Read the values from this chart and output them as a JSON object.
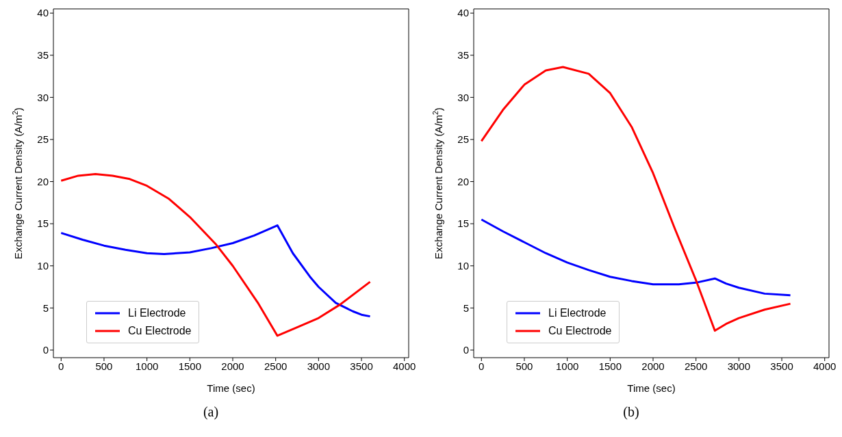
{
  "chart_data": [
    {
      "type": "line",
      "xlabel": "Time (sec)",
      "ylabel": "Exchange Current Density (A/m$^{2}$)",
      "xlim": [
        -90,
        4050
      ],
      "ylim": [
        -0.9,
        40.5
      ],
      "xticks": [
        0,
        500,
        1000,
        1500,
        2000,
        2500,
        3000,
        3500,
        4000
      ],
      "yticks": [
        0,
        5,
        10,
        15,
        20,
        25,
        30,
        35,
        40
      ],
      "legend": "bottom left",
      "grid": false,
      "annotations": [
        "(a)"
      ],
      "series": [
        {
          "name": "Li Electrode",
          "color": "#0000ff",
          "x": [
            0,
            250,
            500,
            750,
            1000,
            1200,
            1500,
            1750,
            2000,
            2250,
            2520,
            2700,
            2900,
            3000,
            3200,
            3400,
            3500,
            3600
          ],
          "values": [
            13.9,
            13.1,
            12.4,
            11.9,
            11.5,
            11.4,
            11.6,
            12.1,
            12.7,
            13.6,
            14.8,
            11.5,
            8.7,
            7.5,
            5.6,
            4.6,
            4.2,
            4.0
          ]
        },
        {
          "name": "Cu Electrode",
          "color": "#ff0000",
          "x": [
            0,
            200,
            400,
            600,
            800,
            1000,
            1250,
            1500,
            1800,
            2000,
            2300,
            2520,
            2750,
            3000,
            3250,
            3600
          ],
          "values": [
            20.1,
            20.7,
            20.9,
            20.7,
            20.3,
            19.5,
            18.0,
            15.8,
            12.6,
            10.0,
            5.5,
            1.7,
            2.7,
            3.8,
            5.4,
            8.1
          ]
        }
      ]
    },
    {
      "type": "line",
      "xlabel": "Time (sec)",
      "ylabel": "Exchange Current Density (A/m$^{2}$)",
      "xlim": [
        -90,
        4050
      ],
      "ylim": [
        -0.9,
        40.5
      ],
      "xticks": [
        0,
        500,
        1000,
        1500,
        2000,
        2500,
        3000,
        3500,
        4000
      ],
      "yticks": [
        0,
        5,
        10,
        15,
        20,
        25,
        30,
        35,
        40
      ],
      "legend": "bottom left",
      "grid": false,
      "annotations": [
        "(b)"
      ],
      "series": [
        {
          "name": "Li Electrode",
          "color": "#0000ff",
          "x": [
            0,
            250,
            500,
            750,
            1000,
            1250,
            1500,
            1750,
            2000,
            2100,
            2300,
            2500,
            2720,
            2850,
            3000,
            3300,
            3600
          ],
          "values": [
            15.5,
            14.1,
            12.8,
            11.5,
            10.4,
            9.5,
            8.7,
            8.2,
            7.8,
            7.8,
            7.8,
            8.0,
            8.5,
            7.9,
            7.4,
            6.7,
            6.5
          ]
        },
        {
          "name": "Cu Electrode",
          "color": "#ff0000",
          "x": [
            0,
            250,
            500,
            750,
            950,
            1250,
            1500,
            1750,
            2000,
            2250,
            2500,
            2720,
            2850,
            3000,
            3300,
            3600
          ],
          "values": [
            24.8,
            28.5,
            31.5,
            33.2,
            33.6,
            32.8,
            30.5,
            26.5,
            21.0,
            14.5,
            8.3,
            2.3,
            3.1,
            3.8,
            4.8,
            5.5
          ]
        }
      ]
    }
  ]
}
